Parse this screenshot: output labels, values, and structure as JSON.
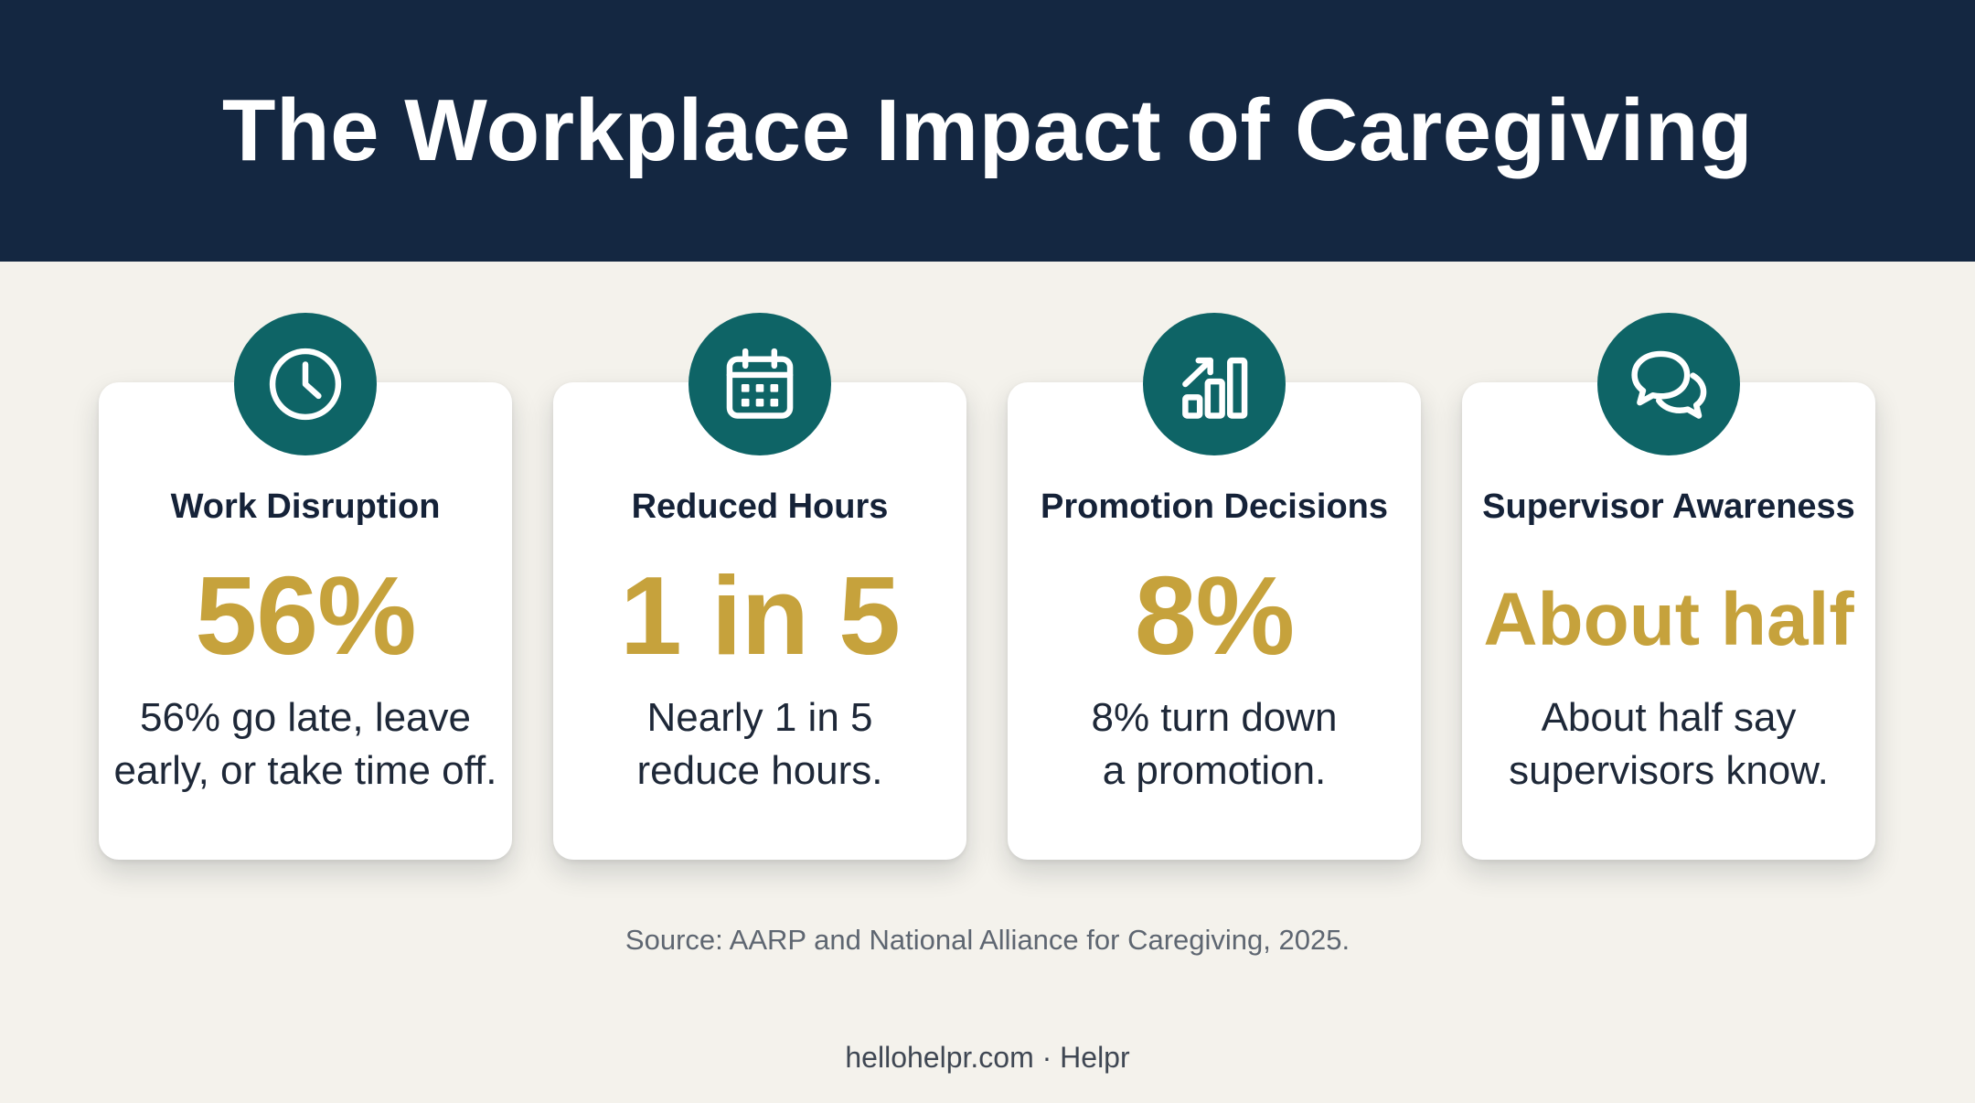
{
  "header": {
    "title": "The Workplace Impact of Caregiving"
  },
  "cards": [
    {
      "icon": "clock-icon",
      "title": "Work Disruption",
      "stat": "56%",
      "desc_line1": "56% go late, leave",
      "desc_line2": "early, or take time off."
    },
    {
      "icon": "calendar-icon",
      "title": "Reduced Hours",
      "stat": "1 in 5",
      "desc_line1": "Nearly 1 in 5",
      "desc_line2": "reduce hours."
    },
    {
      "icon": "bar-chart-icon",
      "title": "Promotion Decisions",
      "stat": "8%",
      "desc_line1": "8% turn down",
      "desc_line2": "a promotion."
    },
    {
      "icon": "chat-bubbles-icon",
      "title": "Supervisor Awareness",
      "stat": "About half",
      "desc_line1": "About half say",
      "desc_line2": "supervisors know."
    }
  ],
  "source": "Source: AARP and National Alliance for Caregiving, 2025.",
  "footer": "hellohelpr.com · Helpr",
  "colors": {
    "header_bg": "#142741",
    "accent_teal": "#0e6466",
    "stat_gold": "#c6a23c",
    "page_bg": "#f4f2ec"
  }
}
